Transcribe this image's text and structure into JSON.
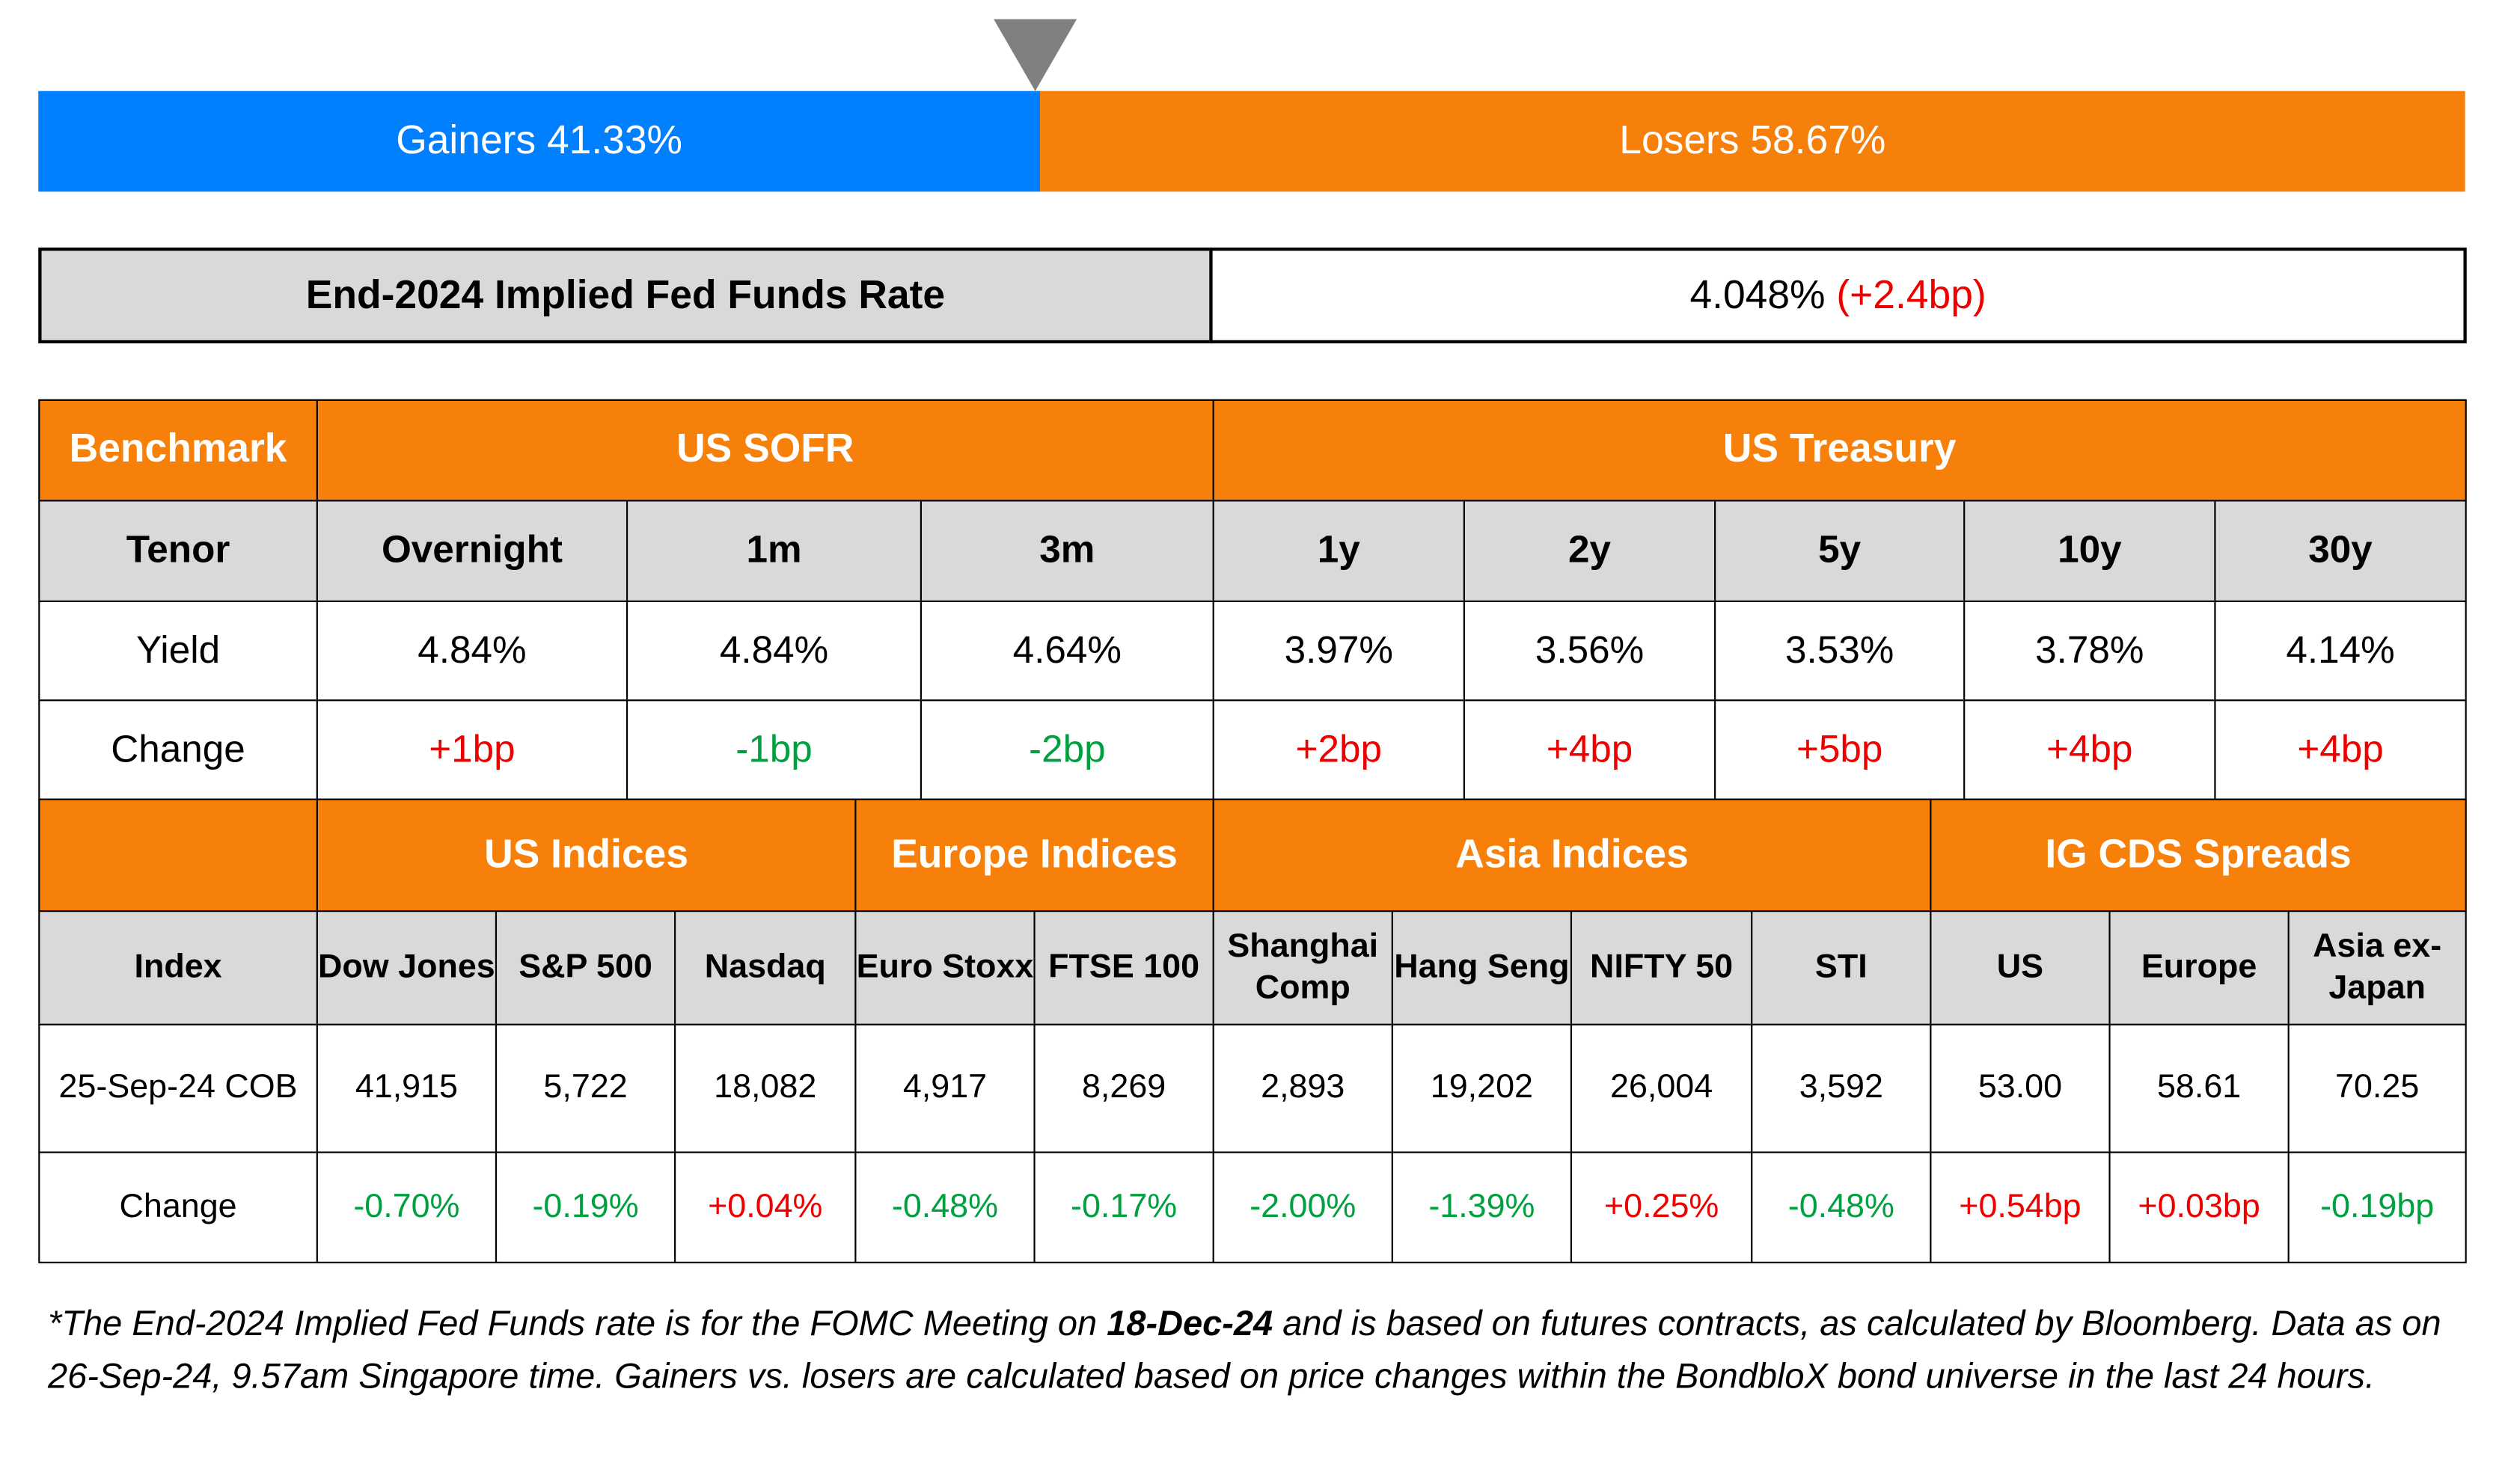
{
  "gainers_losers": {
    "gainers_label": "Gainers 41.33%",
    "losers_label": "Losers 58.67%",
    "gainers_pct": 41.33,
    "losers_pct": 58.67,
    "gainers_color": "#0080ff",
    "losers_color": "#f68009"
  },
  "fed_funds": {
    "label": "End-2024 Implied Fed Funds Rate",
    "value": "4.048%",
    "change": "(+2.4bp)"
  },
  "rates": {
    "header": [
      "Benchmark",
      "US SOFR",
      "US Treasury"
    ],
    "tenor_label": "Tenor",
    "tenors": [
      "Overnight",
      "1m",
      "3m",
      "1y",
      "2y",
      "5y",
      "10y",
      "30y"
    ],
    "yield_label": "Yield",
    "yields": [
      "4.84%",
      "4.84%",
      "4.64%",
      "3.97%",
      "3.56%",
      "3.53%",
      "3.78%",
      "4.14%"
    ],
    "change_label": "Change",
    "changes": [
      "+1bp",
      "-1bp",
      "-2bp",
      "+2bp",
      "+4bp",
      "+5bp",
      "+4bp",
      "+4bp"
    ]
  },
  "indices": {
    "groups": [
      "US Indices",
      "Europe Indices",
      "Asia Indices",
      "IG CDS Spreads"
    ],
    "index_label": "Index",
    "names": [
      "Dow Jones",
      "S&P 500",
      "Nasdaq",
      "Euro Stoxx",
      "FTSE 100",
      "Shanghai Comp",
      "Hang Seng",
      "NIFTY 50",
      "STI",
      "US",
      "Europe",
      "Asia ex-Japan"
    ],
    "date_label": "25-Sep-24 COB",
    "values": [
      "41,915",
      "5,722",
      "18,082",
      "4,917",
      "8,269",
      "2,893",
      "19,202",
      "26,004",
      "3,592",
      "53.00",
      "58.61",
      "70.25"
    ],
    "change_label": "Change",
    "changes": [
      "-0.70%",
      "-0.19%",
      "+0.04%",
      "-0.48%",
      "-0.17%",
      "-2.00%",
      "-1.39%",
      "+0.25%",
      "-0.48%",
      "+0.54bp",
      "+0.03bp",
      "-0.19bp"
    ]
  },
  "footnote": {
    "part1": "*The End-2024 Implied Fed Funds rate is for the FOMC Meeting on ",
    "bold": "18-Dec-24",
    "part2": " and is based on futures contracts, as calculated by Bloomberg. Data as on 26-Sep-24, 9.57am Singapore time. Gainers vs. losers are calculated based on price changes within the BondbloX bond universe in the last 24 hours."
  }
}
